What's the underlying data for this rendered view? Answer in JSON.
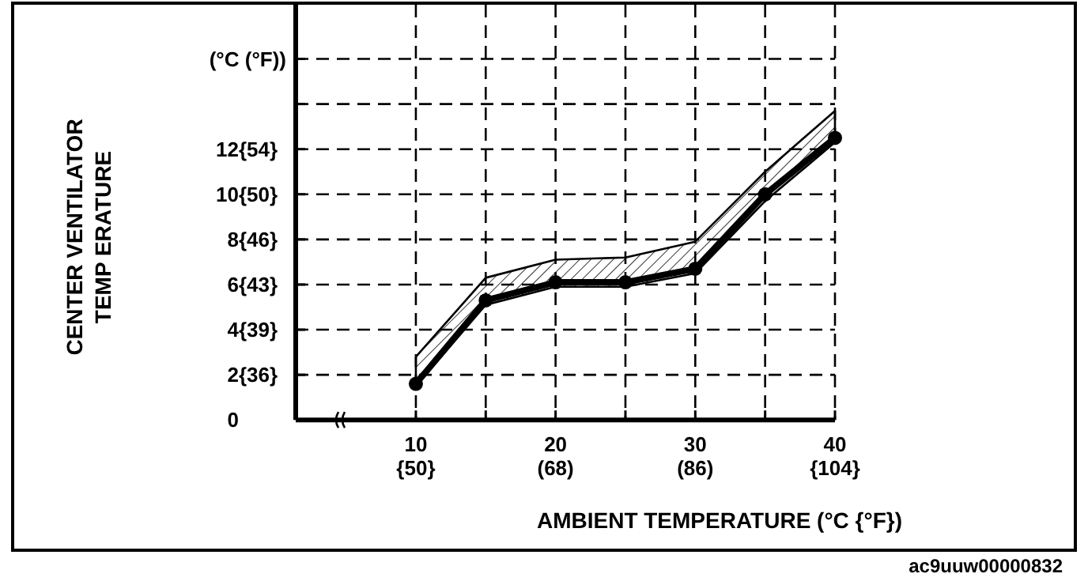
{
  "chart_data": {
    "type": "line",
    "xlabel": "AMBIENT TEMPERATURE   (°C {°F})",
    "ylabel": "CENTER VENTILATOR\nTEMP ERATURE",
    "x": [
      10,
      15,
      20,
      25,
      30,
      35,
      40
    ],
    "series": [
      {
        "color": "#000000",
        "values": [
          1.6,
          5.3,
          6.1,
          6.1,
          6.7,
          10.0,
          12.5
        ],
        "lower": [
          1.5,
          5.1,
          5.9,
          5.9,
          6.5,
          9.7,
          12.3
        ],
        "upper": [
          2.8,
          6.3,
          7.1,
          7.2,
          7.9,
          11.0,
          13.7
        ]
      }
    ],
    "xlim": [
      1.4,
      40
    ],
    "xticks": [
      10,
      {
        "value": 15,
        "label": null
      },
      20,
      {
        "value": 25,
        "label": null
      },
      30,
      {
        "value": 35,
        "label": null
      },
      40
    ],
    "x2lim": [
      34.52,
      104
    ],
    "x2ticks": [
      {
        "value": 50,
        "label": "{50}"
      },
      {
        "value": 68,
        "label": "(68)"
      },
      {
        "value": 86,
        "label": "(86)"
      },
      {
        "value": 104,
        "label": "{104}"
      }
    ],
    "ylim": [
      0,
      18.4
    ],
    "yticks": [
      0,
      2,
      4,
      6,
      8,
      10,
      12,
      {
        "value": 14,
        "label": null
      },
      {
        "value": 16,
        "label": null
      }
    ],
    "y2lim": [
      32,
      65.12
    ],
    "y2ticks": [
      {
        "value": 35.6,
        "label": "{36}"
      },
      {
        "value": 39.2,
        "label": "{39}"
      },
      {
        "value": 42.8,
        "label": "{43}"
      },
      {
        "value": 46.4,
        "label": "{46}"
      },
      {
        "value": 50,
        "label": "{50}"
      },
      {
        "value": 53.6,
        "label": "{54}"
      }
    ],
    "grid": true,
    "marker": "circle",
    "line_style": "solid",
    "annotations": [
      "(°C (°F))",
      "ac9uuw00000832"
    ]
  }
}
